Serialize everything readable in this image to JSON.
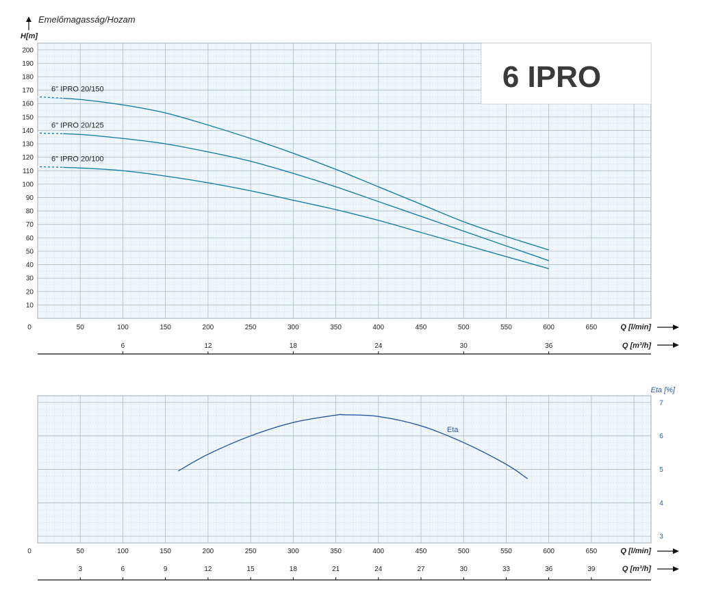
{
  "title": "6 IPRO",
  "chart_data": [
    {
      "type": "line",
      "title": "Emelőmagasság/Hozam",
      "ylabel": "H[m]",
      "xlabel": "Q [l/min]",
      "x2label": "Q [m³/h]",
      "xlim": [
        0,
        720
      ],
      "ylim": [
        0,
        205
      ],
      "x_ticks": [
        0,
        50,
        100,
        150,
        200,
        250,
        300,
        350,
        400,
        450,
        500,
        550,
        600,
        650
      ],
      "y_ticks": [
        10,
        20,
        30,
        40,
        50,
        60,
        70,
        80,
        90,
        100,
        110,
        120,
        130,
        140,
        150,
        160,
        170,
        180,
        190,
        200
      ],
      "x2_ticks": [
        6,
        12,
        18,
        24,
        30,
        36
      ],
      "grid": true,
      "series": [
        {
          "name": "6\" IPRO 20/150",
          "color": "#1a7fa8",
          "x": [
            0,
            50,
            100,
            150,
            200,
            250,
            300,
            350,
            400,
            450,
            500,
            550,
            600
          ],
          "y": [
            165,
            163,
            159,
            153,
            144,
            134,
            123,
            111,
            98,
            85,
            72,
            61,
            51
          ]
        },
        {
          "name": "6\" IPRO 20/125",
          "color": "#1a7fa8",
          "x": [
            0,
            50,
            100,
            150,
            200,
            250,
            300,
            350,
            400,
            450,
            500,
            550,
            600
          ],
          "y": [
            138,
            137,
            134,
            130,
            124,
            117,
            108,
            98,
            87,
            76,
            65,
            54,
            43
          ]
        },
        {
          "name": "6\" IPRO 20/100",
          "color": "#1a7fa8",
          "x": [
            0,
            50,
            100,
            150,
            200,
            250,
            300,
            350,
            400,
            450,
            500,
            550,
            600
          ],
          "y": [
            113,
            112,
            110,
            106,
            101,
            95,
            88,
            81,
            73,
            64,
            55,
            46,
            37
          ]
        }
      ]
    },
    {
      "type": "line",
      "title": "",
      "ylabel": "Eta [%]",
      "xlabel": "Q [l/min]",
      "x2label": "Q [m³/h]",
      "xlim": [
        0,
        720
      ],
      "ylim": [
        2.8,
        7.2
      ],
      "x_ticks": [
        0,
        50,
        100,
        150,
        200,
        250,
        300,
        350,
        400,
        450,
        500,
        550,
        600,
        650
      ],
      "y_ticks": [
        3,
        4,
        5,
        6,
        7
      ],
      "x2_ticks": [
        3,
        6,
        9,
        12,
        15,
        18,
        21,
        24,
        27,
        30,
        33,
        36,
        39
      ],
      "grid": true,
      "series": [
        {
          "name": "Eta",
          "color": "#2a5aa0",
          "x": [
            165,
            200,
            250,
            300,
            350,
            360,
            400,
            450,
            500,
            550,
            575
          ],
          "y": [
            4.95,
            5.45,
            6.0,
            6.4,
            6.62,
            6.63,
            6.58,
            6.3,
            5.8,
            5.15,
            4.72
          ]
        }
      ]
    }
  ]
}
